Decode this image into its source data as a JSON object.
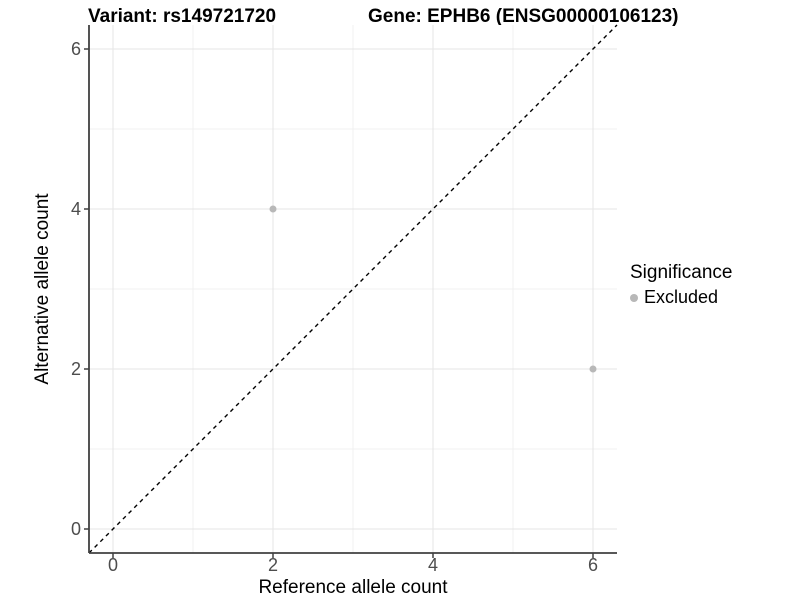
{
  "title_left": "Variant: rs149721720",
  "title_right": "Gene: EPHB6 (ENSG00000106123)",
  "legend": {
    "title": "Significance",
    "items": [
      {
        "label": "Excluded",
        "color": "#b8b8b8",
        "marker": "circle"
      }
    ]
  },
  "chart_data": {
    "type": "scatter",
    "title": "Variant: rs149721720   Gene: EPHB6 (ENSG00000106123)",
    "xlabel": "Reference allele count",
    "ylabel": "Alternative allele count",
    "xlim": [
      -0.3,
      6.3
    ],
    "ylim": [
      -0.3,
      6.3
    ],
    "x_ticks": [
      0,
      2,
      4,
      6
    ],
    "y_ticks": [
      0,
      2,
      4,
      6
    ],
    "x_minor_ticks": [
      1,
      3,
      5
    ],
    "y_minor_ticks": [
      1,
      3,
      5
    ],
    "grid": true,
    "legend_position": "right",
    "series": [
      {
        "name": "Excluded",
        "color": "#b8b8b8",
        "points": [
          {
            "x": 2,
            "y": 4
          },
          {
            "x": 6,
            "y": 2
          }
        ]
      }
    ],
    "reference_line": {
      "type": "identity",
      "style": "dashed",
      "color": "#000000",
      "from": [
        -0.3,
        -0.3
      ],
      "to": [
        6.3,
        6.3
      ]
    },
    "colors": {
      "background": "#ffffff",
      "grid_major": "#e5e5e5",
      "grid_minor": "#f0f0f0",
      "axis_line": "#404040",
      "tick_text": "#4d4d4d",
      "title_text": "#000000"
    }
  }
}
